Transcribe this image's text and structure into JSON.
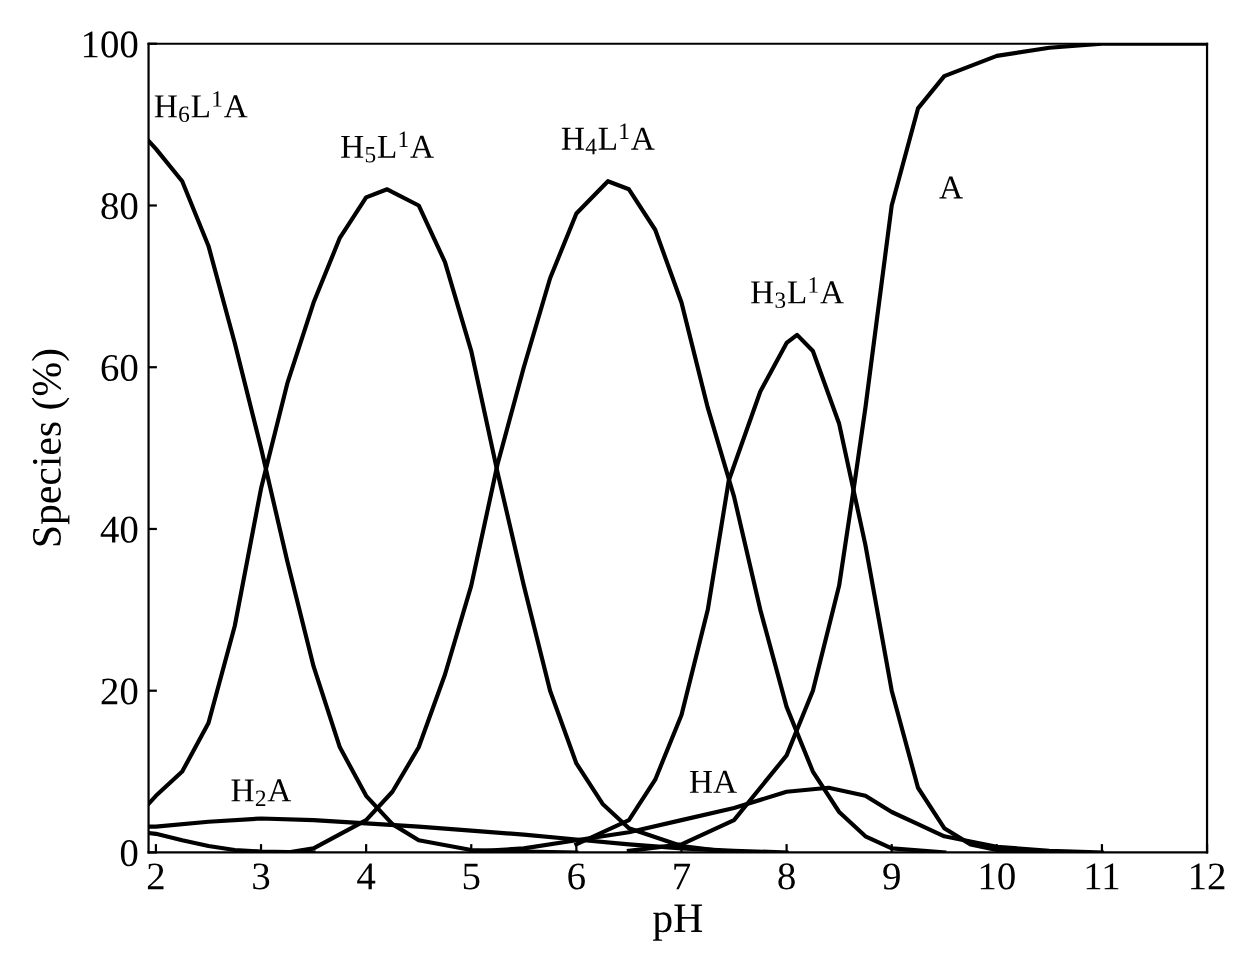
{
  "chart_data": {
    "type": "line",
    "xlabel": "pH",
    "ylabel": "Species (%)",
    "xlim": [
      1.93,
      12
    ],
    "xticks": [
      2,
      3,
      4,
      5,
      6,
      7,
      8,
      9,
      10,
      11,
      12
    ],
    "ylim": [
      0,
      100
    ],
    "yticks": [
      0,
      20,
      40,
      60,
      80,
      100
    ],
    "grid": false,
    "legend": false,
    "marker": "none",
    "line_style": "solid",
    "series": [
      {
        "name": "H$_{6}$L$^{1}$A",
        "color": "#000000",
        "x": [
          1.93,
          2,
          2.25,
          2.5,
          2.75,
          3.0,
          3.25,
          3.5,
          3.75,
          4.0,
          4.25,
          4.5,
          5.0,
          5.5,
          6.0
        ],
        "values": [
          88,
          87,
          83,
          75,
          63,
          50,
          36,
          23,
          13,
          7,
          3.5,
          1.5,
          0.3,
          0.1,
          0
        ]
      },
      {
        "name": "H$_{5}$L$^{1}$A",
        "color": "#000000",
        "x": [
          1.93,
          2,
          2.25,
          2.5,
          2.75,
          3.0,
          3.25,
          3.5,
          3.75,
          4.0,
          4.2,
          4.5,
          4.75,
          5.0,
          5.25,
          5.5,
          5.75,
          6.0,
          6.25,
          6.5,
          7.0,
          7.5
        ],
        "values": [
          6,
          7,
          10,
          16,
          28,
          45,
          58,
          68,
          76,
          81,
          82,
          80,
          73,
          62,
          47,
          33,
          20,
          11,
          6,
          3,
          0.8,
          0
        ]
      },
      {
        "name": "H$_{4}$L$^{1}$A",
        "color": "#000000",
        "x": [
          3.25,
          3.5,
          4.0,
          4.25,
          4.5,
          4.75,
          5.0,
          5.25,
          5.5,
          5.75,
          6.0,
          6.3,
          6.5,
          6.75,
          7.0,
          7.25,
          7.5,
          7.75,
          8.0,
          8.25,
          8.5,
          8.75,
          9.0,
          9.5
        ],
        "values": [
          0,
          0.5,
          4,
          7.5,
          13,
          22,
          33,
          48,
          60,
          71,
          79,
          83,
          82,
          77,
          68,
          55,
          44,
          30,
          18,
          10,
          5,
          2,
          0.5,
          0
        ]
      },
      {
        "name": "H$_{3}$L$^{1}$A",
        "color": "#000000",
        "x": [
          6.0,
          6.5,
          6.75,
          7.0,
          7.25,
          7.45,
          7.75,
          8.0,
          8.1,
          8.25,
          8.5,
          8.75,
          9.0,
          9.25,
          9.5,
          9.75,
          10.0,
          10.5
        ],
        "values": [
          1,
          4,
          9,
          17,
          30,
          46,
          57,
          63,
          64,
          62,
          53,
          38,
          20,
          8,
          3,
          1,
          0.3,
          0
        ]
      },
      {
        "name": "A",
        "color": "#000000",
        "x": [
          6.5,
          7.0,
          7.5,
          7.75,
          8.0,
          8.25,
          8.5,
          8.65,
          8.75,
          9.0,
          9.25,
          9.5,
          10.0,
          10.5,
          11.0,
          12.0
        ],
        "values": [
          0.2,
          1,
          4,
          8,
          12,
          20,
          33,
          46,
          55,
          80,
          92,
          96,
          98.5,
          99.5,
          100,
          100
        ]
      },
      {
        "name": "H$_{2}$A",
        "color": "#000000",
        "x": [
          1.93,
          2,
          2.5,
          3.0,
          3.5,
          4.0,
          4.5,
          5.0,
          5.5,
          6.0,
          6.5,
          7.0,
          7.5,
          8.0
        ],
        "values": [
          3.2,
          3.2,
          3.8,
          4.2,
          4.0,
          3.6,
          3.2,
          2.7,
          2.2,
          1.6,
          1.0,
          0.5,
          0.2,
          0
        ]
      },
      {
        "name": "HA",
        "color": "#000000",
        "x": [
          5.0,
          5.5,
          6.0,
          6.5,
          7.0,
          7.5,
          8.0,
          8.4,
          8.75,
          9.0,
          9.25,
          9.5,
          10.0,
          10.5,
          11.0
        ],
        "values": [
          0.1,
          0.5,
          1.5,
          2.5,
          4,
          5.5,
          7.5,
          8,
          7,
          5,
          3.5,
          2,
          0.7,
          0.2,
          0
        ]
      },
      {
        "color": "#000000",
        "x": [
          1.93,
          2,
          2.25,
          2.5,
          2.75,
          3.0,
          3.5
        ],
        "values": [
          2.4,
          2.3,
          1.5,
          0.8,
          0.3,
          0.1,
          0
        ]
      }
    ]
  }
}
